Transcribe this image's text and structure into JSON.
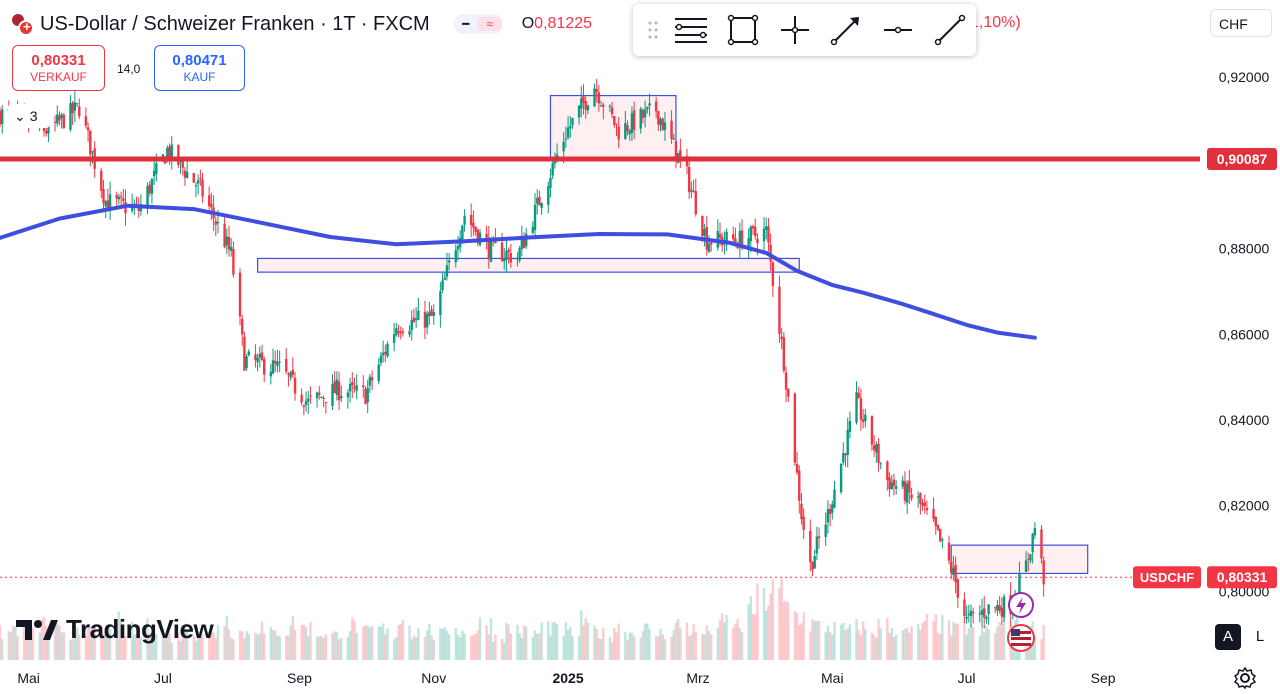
{
  "header": {
    "title": "US-Dollar / Schweizer Franken · 1T · FXCM",
    "ohlc_label": "O",
    "ohlc_value": "0,81225",
    "change_fragment": "1,10%)",
    "pill_left_icon": "minus-icon",
    "pill_right_icon": "wave-icon"
  },
  "trade": {
    "sell_price": "0,80331",
    "sell_label": "VERKAUF",
    "spread": "14,0",
    "buy_price": "0,80471",
    "buy_label": "KAUF"
  },
  "indicators": {
    "collapsed_count": "3"
  },
  "currency": "CHF",
  "toolbar": {
    "items": [
      "grip-icon",
      "lines-icon",
      "rectangle-icon",
      "crosshair-icon",
      "trend-line-icon",
      "horizontal-line-icon",
      "ray-icon"
    ]
  },
  "branding": {
    "name": "TradingView"
  },
  "scale_buttons": {
    "auto": "A",
    "log": "L"
  },
  "colors": {
    "up": "#089981",
    "down": "#f23645",
    "ma": "#3d4ee0",
    "level_line": "#e0303b",
    "box_border": "#3d4ee0",
    "box_fill": "rgba(242,54,69,0.08)"
  },
  "chart_data": {
    "type": "candlestick",
    "symbol": "USDCHF",
    "last_price": "0,80331",
    "level_price_label": "0,90087",
    "y_axis": {
      "ticks": [
        0.92,
        0.9,
        0.88,
        0.86,
        0.84,
        0.82,
        0.8
      ],
      "tick_labels": [
        "0,92000",
        "0,90000",
        "0,88000",
        "0,86000",
        "0,84000",
        "0,82000",
        "0,80000"
      ],
      "range": [
        0.784,
        0.924
      ]
    },
    "x_axis": {
      "labels": [
        "Mai",
        "Jul",
        "Sep",
        "Nov",
        "2025",
        "Mrz",
        "Mai",
        "Jul",
        "Sep"
      ],
      "label_dates": [
        "2024-05-01",
        "2024-07-01",
        "2024-09-01",
        "2024-11-01",
        "2025-01-01",
        "2025-03-01",
        "2025-05-01",
        "2025-07-01",
        "2025-09-01"
      ],
      "range": [
        "2024-04-18",
        "2025-10-15"
      ]
    },
    "close_path": [
      [
        "2024-04-18",
        0.9115
      ],
      [
        "2024-05-10",
        0.9075
      ],
      [
        "2024-05-24",
        0.913
      ],
      [
        "2024-06-05",
        0.891
      ],
      [
        "2024-06-20",
        0.889
      ],
      [
        "2024-07-03",
        0.903
      ],
      [
        "2024-07-18",
        0.894
      ],
      [
        "2024-08-01",
        0.8785
      ],
      [
        "2024-08-07",
        0.854
      ],
      [
        "2024-08-23",
        0.852
      ],
      [
        "2024-09-05",
        0.844
      ],
      [
        "2024-09-18",
        0.847
      ],
      [
        "2024-10-01",
        0.846
      ],
      [
        "2024-10-15",
        0.862
      ],
      [
        "2024-11-01",
        0.864
      ],
      [
        "2024-11-15",
        0.888
      ],
      [
        "2024-11-26",
        0.88
      ],
      [
        "2024-12-09",
        0.878
      ],
      [
        "2024-12-31",
        0.907
      ],
      [
        "2025-01-13",
        0.918
      ],
      [
        "2025-01-24",
        0.9075
      ],
      [
        "2025-02-10",
        0.9125
      ],
      [
        "2025-02-24",
        0.897
      ],
      [
        "2025-03-05",
        0.882
      ],
      [
        "2025-03-20",
        0.882
      ],
      [
        "2025-04-01",
        0.884
      ],
      [
        "2025-04-09",
        0.854
      ],
      [
        "2025-04-17",
        0.818
      ],
      [
        "2025-04-21",
        0.806
      ],
      [
        "2025-04-29",
        0.818
      ],
      [
        "2025-05-12",
        0.844
      ],
      [
        "2025-05-26",
        0.826
      ],
      [
        "2025-06-09",
        0.821
      ],
      [
        "2025-06-17",
        0.814
      ],
      [
        "2025-06-25",
        0.804
      ],
      [
        "2025-07-01",
        0.793
      ],
      [
        "2025-07-11",
        0.796
      ],
      [
        "2025-07-21",
        0.797
      ],
      [
        "2025-07-28",
        0.806
      ],
      [
        "2025-08-01",
        0.815
      ],
      [
        "2025-08-05",
        0.8033
      ]
    ],
    "moving_average": [
      [
        "2024-04-18",
        0.8825
      ],
      [
        "2024-05-15",
        0.887
      ],
      [
        "2024-06-15",
        0.89
      ],
      [
        "2024-07-15",
        0.8892
      ],
      [
        "2024-08-15",
        0.886
      ],
      [
        "2024-09-15",
        0.8827
      ],
      [
        "2024-10-15",
        0.881
      ],
      [
        "2024-11-15",
        0.8817
      ],
      [
        "2024-12-15",
        0.8826
      ],
      [
        "2025-01-15",
        0.8834
      ],
      [
        "2025-02-15",
        0.8833
      ],
      [
        "2025-03-15",
        0.8814
      ],
      [
        "2025-04-01",
        0.879
      ],
      [
        "2025-04-15",
        0.8748
      ],
      [
        "2025-05-01",
        0.8715
      ],
      [
        "2025-05-15",
        0.8697
      ],
      [
        "2025-06-01",
        0.8672
      ],
      [
        "2025-06-15",
        0.8649
      ],
      [
        "2025-07-01",
        0.8622
      ],
      [
        "2025-07-15",
        0.8604
      ],
      [
        "2025-08-01",
        0.8592
      ]
    ],
    "horizontal_level": 0.9009,
    "annotation_boxes": [
      {
        "from": "2024-12-24",
        "to": "2025-02-19",
        "low": 0.9005,
        "high": 0.9157
      },
      {
        "from": "2024-08-13",
        "to": "2025-04-16",
        "low": 0.8745,
        "high": 0.8777
      },
      {
        "from": "2025-06-24",
        "to": "2025-08-25",
        "low": 0.8042,
        "high": 0.8108
      }
    ],
    "volume_relative": [
      0.3,
      0.35,
      0.28,
      0.4,
      0.32,
      0.25,
      0.38,
      0.3,
      0.27,
      0.42,
      0.33,
      0.29,
      0.36,
      0.31,
      0.26,
      0.34,
      0.3,
      0.28,
      0.45,
      0.32,
      0.3,
      0.37,
      0.29,
      0.33,
      0.41,
      0.35,
      0.3,
      0.27,
      0.32,
      0.38,
      0.3,
      0.34,
      0.29,
      0.44,
      0.31,
      0.33,
      0.28,
      0.36,
      0.3,
      0.32,
      0.4,
      0.27,
      0.35,
      0.31,
      0.29,
      0.37,
      0.33,
      0.3,
      0.43,
      0.32,
      0.28,
      0.36,
      0.3,
      0.34,
      0.29,
      0.31,
      0.39,
      0.33,
      0.3,
      0.35,
      0.42,
      0.38,
      0.55,
      0.68,
      0.75,
      0.6,
      0.48,
      0.4,
      0.37,
      0.35,
      0.33,
      0.36,
      0.31,
      0.38,
      0.34,
      0.3,
      0.36,
      0.41,
      0.39,
      0.33,
      0.36,
      0.3,
      0.34,
      0.38,
      0.45,
      0.35,
      0.32
    ]
  }
}
